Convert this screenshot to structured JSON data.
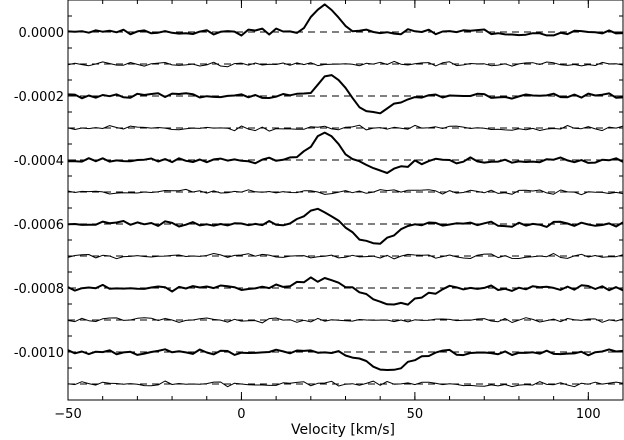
{
  "chart_data": {
    "type": "line",
    "title": "",
    "xlabel": "Velocity [km/s]",
    "ylabel": "",
    "xlim": [
      -50,
      110
    ],
    "ylim": [
      -0.00113,
      0.0001
    ],
    "x_ticks": [
      -50,
      0,
      50,
      100
    ],
    "x_tick_labels": [
      "−50",
      "0",
      "50",
      "100"
    ],
    "y_ticks": [
      0.0,
      -0.0002,
      -0.0004,
      -0.0006,
      -0.0008,
      -0.001
    ],
    "y_tick_labels": [
      "0.0000",
      "-0.0002",
      "-0.0004",
      "-0.0006",
      "-0.0008",
      "-0.0010"
    ],
    "grid": false,
    "legend": "none",
    "x_start": -50,
    "x_step": 2,
    "offsets": [
      0.0,
      -0.0001,
      -0.0002,
      -0.0003,
      -0.0004,
      -0.0005,
      -0.0006,
      -0.0007,
      -0.0008,
      -0.0009,
      -0.001,
      -0.0011
    ],
    "series": [
      {
        "style": "thick",
        "values": [
          -0.0,
          -0.0,
          0.0,
          -0.0,
          -0.0,
          0.0,
          -0.0,
          0.0,
          0.0,
          -0.0,
          0.0,
          0.0,
          -0.0,
          0.0,
          0.0,
          -0.0,
          0.0,
          -0.0,
          0.0,
          -0.0,
          0.0,
          -0.0,
          0.0,
          0.0,
          -0.0,
          -0.0,
          0.0,
          0.0,
          -0.0,
          0.0,
          0.0,
          0.0,
          0.0,
          0.0,
          0.0,
          0.0,
          0.0,
          0.0,
          0.0,
          0.0,
          0.0,
          0.0,
          0.0,
          0.0,
          0.0,
          0.0,
          0.0,
          0.0,
          0.0,
          0.0,
          0.0,
          0.0,
          0.0,
          0.0,
          0.0,
          0.0,
          0.0,
          0.0,
          0.0,
          0.0,
          0.0,
          0.0,
          0.0,
          0.0,
          0.0,
          0.0,
          0.0,
          0.0,
          0.0,
          0.0,
          0.0,
          0.0,
          0.0,
          0.0,
          0.0,
          0.0,
          0.0,
          0.0,
          0.0,
          0.0,
          0.0
        ]
      },
      {
        "style": "thin",
        "values": [
          0.0,
          0.0,
          -0.0,
          0.0,
          -0.0,
          0.0,
          0.0,
          -0.0,
          0.0,
          -0.0,
          0.0,
          0.0,
          -0.0,
          0.0,
          -0.0,
          0.0,
          -0.0,
          0.0,
          0.0,
          -0.0,
          0.0,
          -0.0,
          0.0,
          -0.0,
          0.0,
          0.0,
          -0.0,
          0.0,
          -0.0,
          0.0,
          -0.0,
          0.0,
          -0.0,
          0.0,
          0.0,
          -0.0,
          0.0,
          -0.0,
          0.0,
          -0.0,
          0.0,
          0.0,
          -0.0,
          0.0,
          -0.0,
          0.0,
          -0.0,
          0.0,
          0.0,
          -0.0,
          0.0,
          -0.0,
          0.0,
          -0.0,
          0.0,
          0.0,
          -0.0,
          0.0,
          -0.0,
          0.0,
          -0.0,
          0.0,
          0.0,
          -0.0,
          0.0,
          -0.0,
          0.0,
          -0.0,
          0.0,
          0.0,
          -0.0,
          0.0,
          -0.0,
          0.0,
          -0.0,
          0.0,
          0.0,
          -0.0,
          0.0,
          -0.0,
          0.0
        ]
      },
      {
        "style": "thick",
        "values": [
          0.0,
          -0.0,
          0.0,
          -0.0,
          0.0,
          0.0,
          -0.0,
          0.0,
          -0.0,
          0.0,
          -0.0,
          0.0,
          0.0,
          -0.0,
          0.0,
          -0.0,
          0.0,
          0.0,
          -0.0,
          0.0,
          -0.0,
          0.0,
          0.0,
          -0.0,
          0.0,
          -0.0,
          0.0,
          0.0,
          0.0,
          0.0,
          0.0,
          0.0,
          0.0,
          0.0,
          0.0,
          0.0,
          0.0,
          0.0,
          -0.0,
          -0.0,
          -0.0,
          -0.0,
          -0.0,
          -0.0,
          -0.0,
          -0.0,
          0.0,
          -0.0,
          0.0,
          -0.0,
          0.0,
          0.0,
          -0.0,
          0.0,
          -0.0,
          0.0,
          -0.0,
          0.0,
          0.0,
          -0.0,
          0.0,
          -0.0,
          0.0,
          -0.0,
          0.0,
          0.0,
          -0.0,
          0.0,
          -0.0,
          0.0,
          -0.0,
          0.0,
          0.0,
          -0.0,
          0.0,
          -0.0,
          0.0,
          -0.0,
          0.0,
          0.0,
          -0.0
        ]
      },
      {
        "style": "thin",
        "values": [
          0.0,
          -0.0,
          0.0,
          0.0,
          -0.0,
          0.0,
          -0.0,
          0.0,
          0.0,
          -0.0,
          0.0,
          -0.0,
          0.0,
          0.0,
          -0.0,
          0.0,
          -0.0,
          0.0,
          0.0,
          -0.0,
          0.0,
          -0.0,
          0.0,
          0.0,
          -0.0,
          0.0,
          -0.0,
          0.0,
          0.0,
          -0.0,
          0.0,
          -0.0,
          0.0,
          0.0,
          -0.0,
          0.0,
          -0.0,
          0.0,
          0.0,
          -0.0,
          0.0,
          -0.0,
          0.0,
          0.0,
          -0.0,
          0.0,
          -0.0,
          0.0,
          0.0,
          -0.0,
          0.0,
          -0.0,
          0.0,
          0.0,
          -0.0,
          0.0,
          -0.0,
          0.0,
          0.0,
          -0.0,
          0.0,
          -0.0,
          0.0,
          0.0,
          -0.0,
          0.0,
          -0.0,
          0.0,
          0.0,
          -0.0,
          0.0,
          -0.0,
          0.0,
          0.0,
          -0.0,
          0.0,
          -0.0,
          0.0,
          0.0,
          -0.0,
          0.0
        ]
      },
      {
        "style": "thick",
        "values": [
          0.0,
          -0.0,
          0.0,
          -0.0,
          0.0,
          0.0,
          -0.0,
          0.0,
          -0.0,
          0.0,
          0.0,
          -0.0,
          0.0,
          -0.0,
          0.0,
          0.0,
          -0.0,
          0.0,
          -0.0,
          0.0,
          0.0,
          -0.0,
          0.0,
          -0.0,
          0.0,
          0.0,
          -0.0,
          0.0,
          0.0,
          0.0,
          0.0,
          0.0,
          0.0,
          0.0,
          0.0,
          0.0,
          0.0,
          0.0,
          -0.0,
          -0.0,
          -0.0,
          -0.0,
          -0.0,
          -0.0,
          -0.0,
          -0.0,
          -0.0,
          0.0,
          -0.0,
          0.0,
          0.0,
          -0.0,
          0.0,
          -0.0,
          0.0,
          0.0,
          -0.0,
          0.0,
          -0.0,
          0.0,
          0.0,
          -0.0,
          0.0,
          -0.0,
          0.0,
          0.0,
          -0.0,
          0.0,
          -0.0,
          0.0,
          0.0,
          -0.0,
          0.0,
          -0.0,
          0.0,
          0.0,
          -0.0,
          0.0,
          -0.0,
          0.0,
          0.0
        ]
      },
      {
        "style": "thin",
        "values": [
          -0.0,
          0.0,
          -0.0,
          0.0,
          0.0,
          -0.0,
          0.0,
          -0.0,
          0.0,
          0.0,
          -0.0,
          0.0,
          -0.0,
          0.0,
          0.0,
          -0.0,
          0.0,
          -0.0,
          0.0,
          0.0,
          -0.0,
          0.0,
          -0.0,
          0.0,
          0.0,
          -0.0,
          0.0,
          -0.0,
          0.0,
          0.0,
          -0.0,
          0.0,
          -0.0,
          0.0,
          0.0,
          -0.0,
          0.0,
          -0.0,
          0.0,
          0.0,
          -0.0,
          0.0,
          -0.0,
          0.0,
          0.0,
          -0.0,
          0.0,
          -0.0,
          0.0,
          0.0,
          -0.0,
          0.0,
          -0.0,
          0.0,
          0.0,
          -0.0,
          0.0,
          -0.0,
          0.0,
          0.0,
          -0.0,
          0.0,
          -0.0,
          0.0,
          0.0,
          -0.0,
          0.0,
          -0.0,
          0.0,
          0.0,
          -0.0,
          0.0,
          -0.0,
          0.0,
          0.0,
          -0.0,
          0.0,
          -0.0,
          0.0,
          0.0,
          -0.0
        ]
      },
      {
        "style": "thick",
        "values": [
          -0.0,
          0.0,
          -0.0,
          0.0,
          0.0,
          -0.0,
          0.0,
          -0.0,
          0.0,
          0.0,
          -0.0,
          0.0,
          -0.0,
          0.0,
          0.0,
          -0.0,
          0.0,
          -0.0,
          0.0,
          0.0,
          -0.0,
          0.0,
          -0.0,
          0.0,
          0.0,
          -0.0,
          0.0,
          0.0,
          0.0,
          0.0,
          0.0,
          0.0,
          0.0,
          0.0,
          0.0,
          0.0,
          0.0,
          0.0,
          0.0,
          -0.0,
          -0.0,
          -0.0,
          -0.0,
          -0.0,
          -0.0,
          -0.0,
          -0.0,
          -0.0,
          -0.0,
          0.0,
          -0.0,
          0.0,
          0.0,
          -0.0,
          0.0,
          -0.0,
          0.0,
          0.0,
          -0.0,
          0.0,
          -0.0,
          0.0,
          0.0,
          -0.0,
          0.0,
          -0.0,
          0.0,
          0.0,
          -0.0,
          0.0,
          -0.0,
          0.0,
          0.0,
          -0.0,
          0.0,
          -0.0,
          0.0,
          0.0,
          -0.0,
          0.0,
          -0.0
        ]
      },
      {
        "style": "thin",
        "values": [
          0.0,
          -0.0,
          0.0,
          0.0,
          -0.0,
          0.0,
          -0.0,
          0.0,
          0.0,
          -0.0,
          0.0,
          -0.0,
          0.0,
          0.0,
          -0.0,
          0.0,
          -0.0,
          0.0,
          0.0,
          -0.0,
          0.0,
          -0.0,
          0.0,
          0.0,
          -0.0,
          0.0,
          -0.0,
          0.0,
          0.0,
          -0.0,
          0.0,
          -0.0,
          0.0,
          0.0,
          -0.0,
          0.0,
          -0.0,
          0.0,
          0.0,
          -0.0,
          0.0,
          -0.0,
          0.0,
          0.0,
          -0.0,
          0.0,
          -0.0,
          0.0,
          0.0,
          -0.0,
          0.0,
          -0.0,
          0.0,
          0.0,
          -0.0,
          0.0,
          -0.0,
          0.0,
          0.0,
          -0.0,
          0.0,
          -0.0,
          0.0,
          0.0,
          -0.0,
          0.0,
          -0.0,
          0.0,
          0.0,
          -0.0,
          0.0,
          -0.0,
          0.0,
          0.0,
          -0.0,
          0.0,
          -0.0,
          0.0,
          0.0,
          -0.0,
          0.0
        ]
      },
      {
        "style": "thick",
        "values": [
          0.0,
          -0.0,
          0.0,
          0.0,
          -0.0,
          0.0,
          -0.0,
          0.0,
          0.0,
          -0.0,
          0.0,
          -0.0,
          0.0,
          0.0,
          -0.0,
          0.0,
          -0.0,
          0.0,
          0.0,
          -0.0,
          0.0,
          -0.0,
          0.0,
          0.0,
          0.0,
          0.0,
          0.0,
          0.0,
          0.0,
          0.0,
          0.0,
          0.0,
          0.0,
          0.0,
          0.0,
          0.0,
          0.0,
          0.0,
          0.0,
          0.0,
          -0.0,
          -0.0,
          -0.0,
          -0.0,
          -0.0,
          -0.0,
          -0.0,
          -0.0,
          -0.0,
          -0.0,
          -0.0,
          0.0,
          -0.0,
          0.0,
          0.0,
          -0.0,
          0.0,
          -0.0,
          0.0,
          0.0,
          -0.0,
          0.0,
          -0.0,
          0.0,
          0.0,
          -0.0,
          0.0,
          -0.0,
          0.0,
          0.0,
          -0.0,
          0.0,
          -0.0,
          0.0,
          0.0,
          -0.0,
          0.0,
          -0.0,
          0.0,
          0.0,
          -0.0
        ]
      },
      {
        "style": "thin",
        "values": [
          -0.0,
          0.0,
          -0.0,
          0.0,
          0.0,
          -0.0,
          0.0,
          -0.0,
          0.0,
          0.0,
          -0.0,
          0.0,
          -0.0,
          0.0,
          0.0,
          -0.0,
          0.0,
          -0.0,
          0.0,
          0.0,
          -0.0,
          0.0,
          -0.0,
          0.0,
          0.0,
          -0.0,
          0.0,
          -0.0,
          0.0,
          0.0,
          -0.0,
          0.0,
          -0.0,
          0.0,
          0.0,
          -0.0,
          0.0,
          -0.0,
          0.0,
          0.0,
          -0.0,
          0.0,
          -0.0,
          0.0,
          0.0,
          -0.0,
          0.0,
          -0.0,
          0.0,
          0.0,
          -0.0,
          0.0,
          -0.0,
          0.0,
          0.0,
          -0.0,
          0.0,
          -0.0,
          0.0,
          0.0,
          -0.0,
          0.0,
          -0.0,
          0.0,
          0.0,
          -0.0,
          0.0,
          -0.0,
          0.0,
          0.0,
          -0.0,
          0.0,
          -0.0,
          0.0,
          0.0,
          -0.0,
          0.0,
          -0.0,
          0.0,
          0.0,
          -0.0
        ]
      },
      {
        "style": "thick",
        "values": [
          0.0,
          -0.0,
          0.0,
          0.0,
          -0.0,
          0.0,
          -0.0,
          0.0,
          0.0,
          -0.0,
          0.0,
          -0.0,
          0.0,
          0.0,
          -0.0,
          0.0,
          -0.0,
          0.0,
          0.0,
          -0.0,
          0.0,
          -0.0,
          0.0,
          0.0,
          -0.0,
          0.0,
          -0.0,
          0.0,
          0.0,
          -0.0,
          0.0,
          -0.0,
          0.0,
          0.0,
          0.0,
          -0.0,
          -0.0,
          -0.0,
          -0.0,
          -0.0,
          -0.0,
          -0.0,
          -0.0,
          -0.0,
          -0.0,
          -0.0,
          -0.0,
          -0.0,
          -0.0,
          -0.0,
          0.0,
          0.0,
          -0.0,
          0.0,
          -0.0,
          0.0,
          0.0,
          -0.0,
          0.0,
          -0.0,
          0.0,
          0.0,
          -0.0,
          0.0,
          -0.0,
          0.0,
          0.0,
          -0.0,
          0.0,
          -0.0,
          0.0,
          0.0,
          -0.0,
          0.0,
          -0.0,
          0.0,
          0.0,
          -0.0,
          0.0,
          -0.0,
          0.0
        ]
      },
      {
        "style": "thin",
        "values": [
          0.0,
          -0.0,
          0.0,
          0.0,
          -0.0,
          0.0,
          -0.0,
          0.0,
          0.0,
          -0.0,
          0.0,
          -0.0,
          0.0,
          0.0,
          -0.0,
          0.0,
          -0.0,
          0.0,
          0.0,
          -0.0,
          0.0,
          -0.0,
          0.0,
          0.0,
          -0.0,
          0.0,
          -0.0,
          0.0,
          0.0,
          -0.0,
          0.0,
          -0.0,
          0.0,
          0.0,
          -0.0,
          0.0,
          -0.0,
          0.0,
          0.0,
          -0.0,
          0.0,
          -0.0,
          0.0,
          0.0,
          -0.0,
          0.0,
          -0.0,
          0.0,
          0.0,
          -0.0,
          0.0,
          -0.0,
          0.0,
          0.0,
          -0.0,
          0.0,
          -0.0,
          0.0,
          0.0,
          -0.0,
          0.0,
          -0.0,
          0.0,
          0.0,
          -0.0,
          0.0,
          -0.0,
          0.0,
          0.0,
          -0.0,
          0.0,
          -0.0,
          0.0,
          0.0,
          -0.0,
          0.0,
          -0.0,
          0.0,
          0.0,
          -0.0,
          0.0
        ]
      }
    ]
  }
}
